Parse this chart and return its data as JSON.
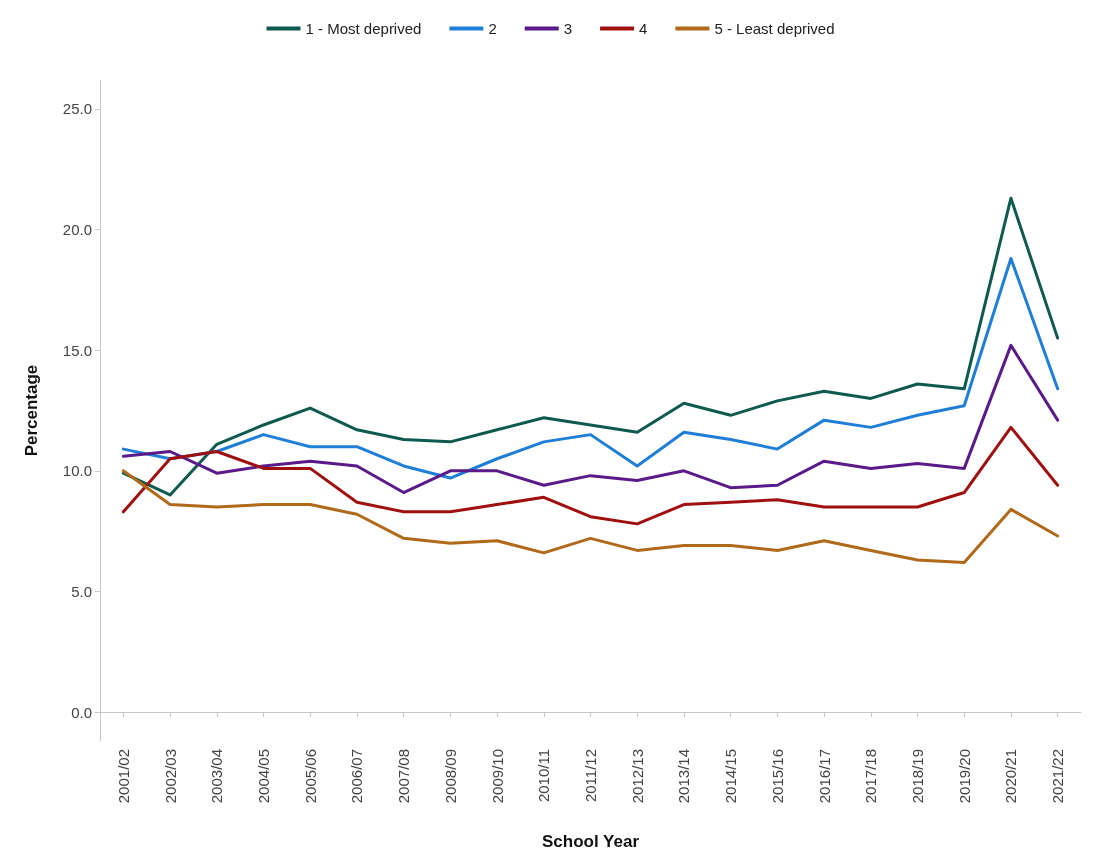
{
  "chart_data": {
    "type": "line",
    "xlabel": "School Year",
    "ylabel": "Percentage",
    "categories": [
      "2001/02",
      "2002/03",
      "2003/04",
      "2004/05",
      "2005/06",
      "2006/07",
      "2007/08",
      "2008/09",
      "2009/10",
      "2010/11",
      "2011/12",
      "2012/13",
      "2013/14",
      "2014/15",
      "2015/16",
      "2016/17",
      "2017/18",
      "2018/19",
      "2019/20",
      "2020/21",
      "2021/22"
    ],
    "series": [
      {
        "name": "1 - Most deprived",
        "color": "#0f5a4f",
        "values": [
          9.9,
          9.0,
          11.1,
          11.9,
          12.6,
          11.7,
          11.3,
          11.2,
          11.7,
          12.2,
          11.9,
          11.6,
          12.8,
          12.3,
          12.9,
          13.3,
          13.0,
          13.6,
          13.4,
          21.3,
          15.5
        ]
      },
      {
        "name": "2",
        "color": "#1f7fd8",
        "values": [
          10.9,
          10.5,
          10.8,
          11.5,
          11.0,
          11.0,
          10.2,
          9.7,
          10.5,
          11.2,
          11.5,
          10.2,
          11.6,
          11.3,
          10.9,
          12.1,
          11.8,
          12.3,
          12.7,
          18.8,
          13.4
        ]
      },
      {
        "name": "3",
        "color": "#5a1a8a",
        "values": [
          10.6,
          10.8,
          9.9,
          10.2,
          10.4,
          10.2,
          9.1,
          10.0,
          10.0,
          9.4,
          9.8,
          9.6,
          10.0,
          9.3,
          9.4,
          10.4,
          10.1,
          10.3,
          10.1,
          15.2,
          12.1
        ]
      },
      {
        "name": "4",
        "color": "#a01010",
        "values": [
          8.3,
          10.5,
          10.8,
          10.1,
          10.1,
          8.7,
          8.3,
          8.3,
          8.6,
          8.9,
          8.1,
          7.8,
          8.6,
          8.7,
          8.8,
          8.5,
          8.5,
          8.5,
          9.1,
          11.8,
          9.4
        ]
      },
      {
        "name": "5 - Least deprived",
        "color": "#b06a1a",
        "values": [
          10.0,
          8.6,
          8.5,
          8.6,
          8.6,
          8.2,
          7.2,
          7.0,
          7.1,
          6.6,
          7.2,
          6.7,
          6.9,
          6.9,
          6.7,
          7.1,
          6.7,
          6.3,
          6.2,
          8.4,
          7.3
        ]
      }
    ],
    "ylim": [
      -1.2,
      26.2
    ],
    "yticks": [
      {
        "value": 0,
        "label": "0.0"
      },
      {
        "value": 5,
        "label": "5.0"
      },
      {
        "value": 10,
        "label": "10.0"
      },
      {
        "value": 15,
        "label": "15.0"
      },
      {
        "value": 20,
        "label": "20.0"
      },
      {
        "value": 25,
        "label": "25.0"
      }
    ],
    "grid": false,
    "legend": "top",
    "marker": "none",
    "line_style": "solid"
  }
}
